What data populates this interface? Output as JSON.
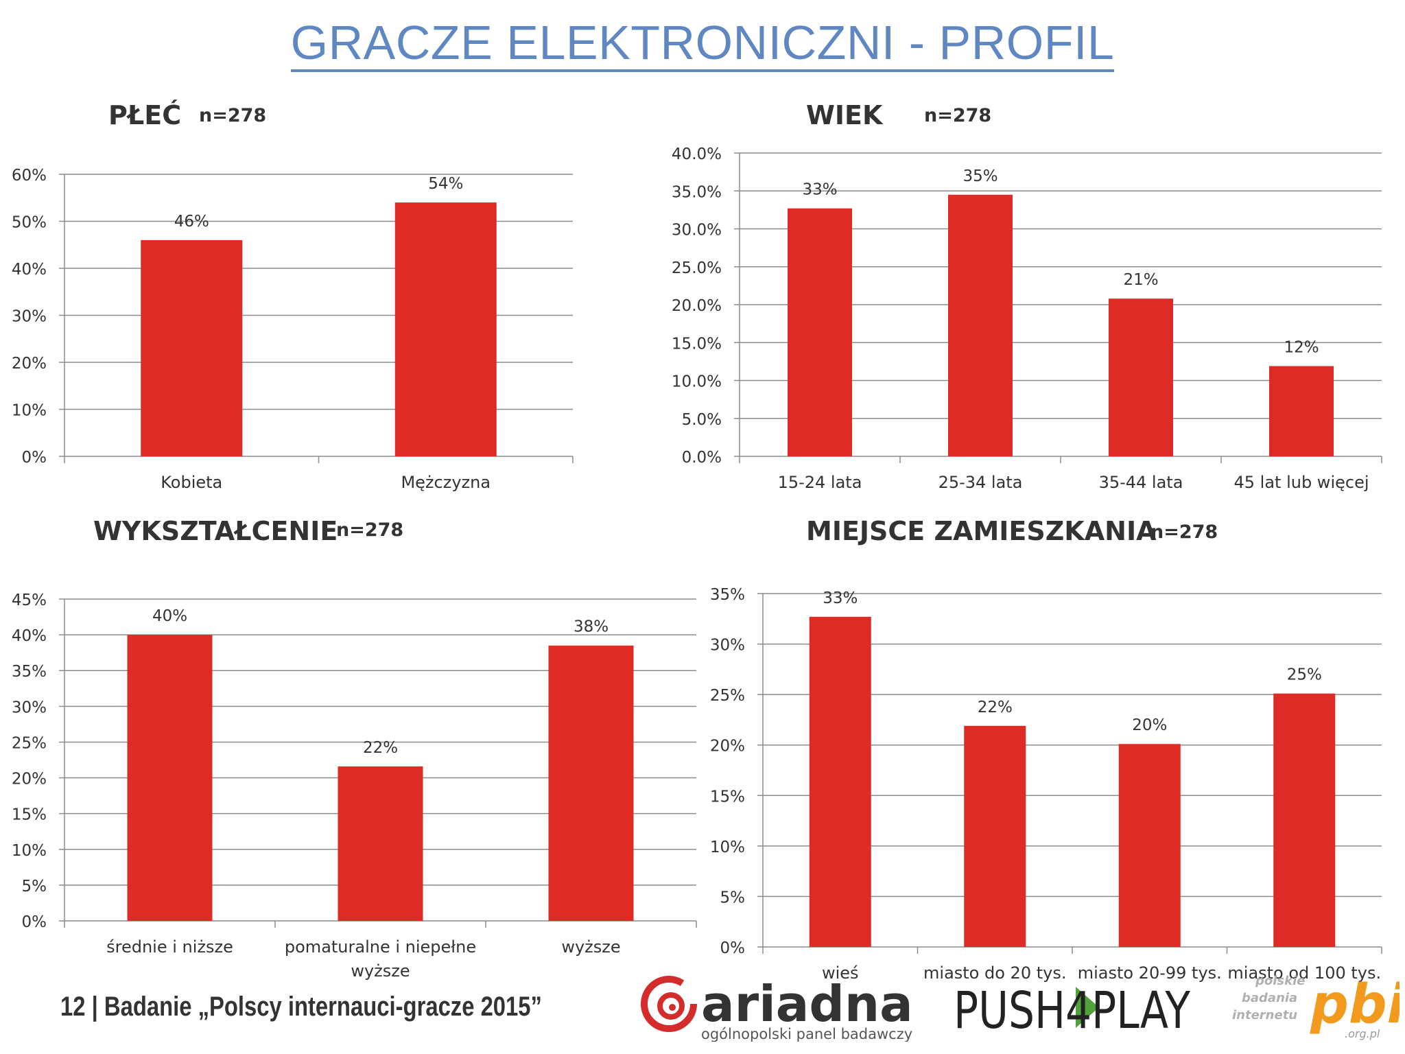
{
  "page": {
    "title": "GRACZE ELEKTRONICZNI - PROFIL",
    "footer": "12 |  Badanie „Polscy internauci-gracze 2015”",
    "bar_color": "#de2b25",
    "title_color": "#5f87c2"
  },
  "logos": {
    "ariadna": {
      "name": "ariadna",
      "tagline": "ogólnopolski panel badawczy",
      "icon": "ariadna-swirl-logo"
    },
    "push4play": {
      "text": "PUSH4PLAY"
    },
    "pbi": {
      "text": "pbi",
      "tagline": [
        "polskie",
        "badania",
        "internetu"
      ],
      "domain": ".org.pl"
    }
  },
  "chart_data": [
    {
      "id": "plec",
      "type": "bar",
      "title": "PŁEĆ",
      "n": "n=278",
      "categories": [
        "Kobieta",
        "Mężczyzna"
      ],
      "values": [
        46,
        54
      ],
      "labels": [
        "46%",
        "54%"
      ],
      "ylim": [
        0,
        60
      ],
      "ytick_step": 10,
      "ytick_decimals": 0,
      "grid": true
    },
    {
      "id": "wiek",
      "type": "bar",
      "title": "WIEK",
      "n": "n=278",
      "categories": [
        "15-24 lata",
        "25-34 lata",
        "35-44 lata",
        "45 lat lub więcej"
      ],
      "values": [
        32.7,
        34.5,
        20.8,
        11.9
      ],
      "labels": [
        "33%",
        "35%",
        "21%",
        "12%"
      ],
      "ylim": [
        0,
        40
      ],
      "ytick_step": 5,
      "ytick_decimals": 1,
      "grid": true
    },
    {
      "id": "wyksztalcenie",
      "type": "bar",
      "title": "WYKSZTAŁCENIE",
      "n": "n=278",
      "categories": [
        [
          "średnie i niższe"
        ],
        [
          "pomaturalne i niepełne",
          "wyższe"
        ],
        [
          "wyższe"
        ]
      ],
      "values": [
        40,
        21.6,
        38.5
      ],
      "labels": [
        "40%",
        "22%",
        "38%"
      ],
      "ylim": [
        0,
        45
      ],
      "ytick_step": 5,
      "ytick_decimals": 0,
      "grid": true
    },
    {
      "id": "miejsce",
      "type": "bar",
      "title": "MIEJSCE ZAMIESZKANIA",
      "n": "n=278",
      "categories": [
        "wieś",
        "miasto do 20 tys.",
        "miasto 20-99 tys.",
        "miasto od 100 tys."
      ],
      "values": [
        32.7,
        21.9,
        20.1,
        25.1
      ],
      "labels": [
        "33%",
        "22%",
        "20%",
        "25%"
      ],
      "ylim": [
        0,
        35
      ],
      "ytick_step": 5,
      "ytick_decimals": 0,
      "grid": true
    }
  ]
}
